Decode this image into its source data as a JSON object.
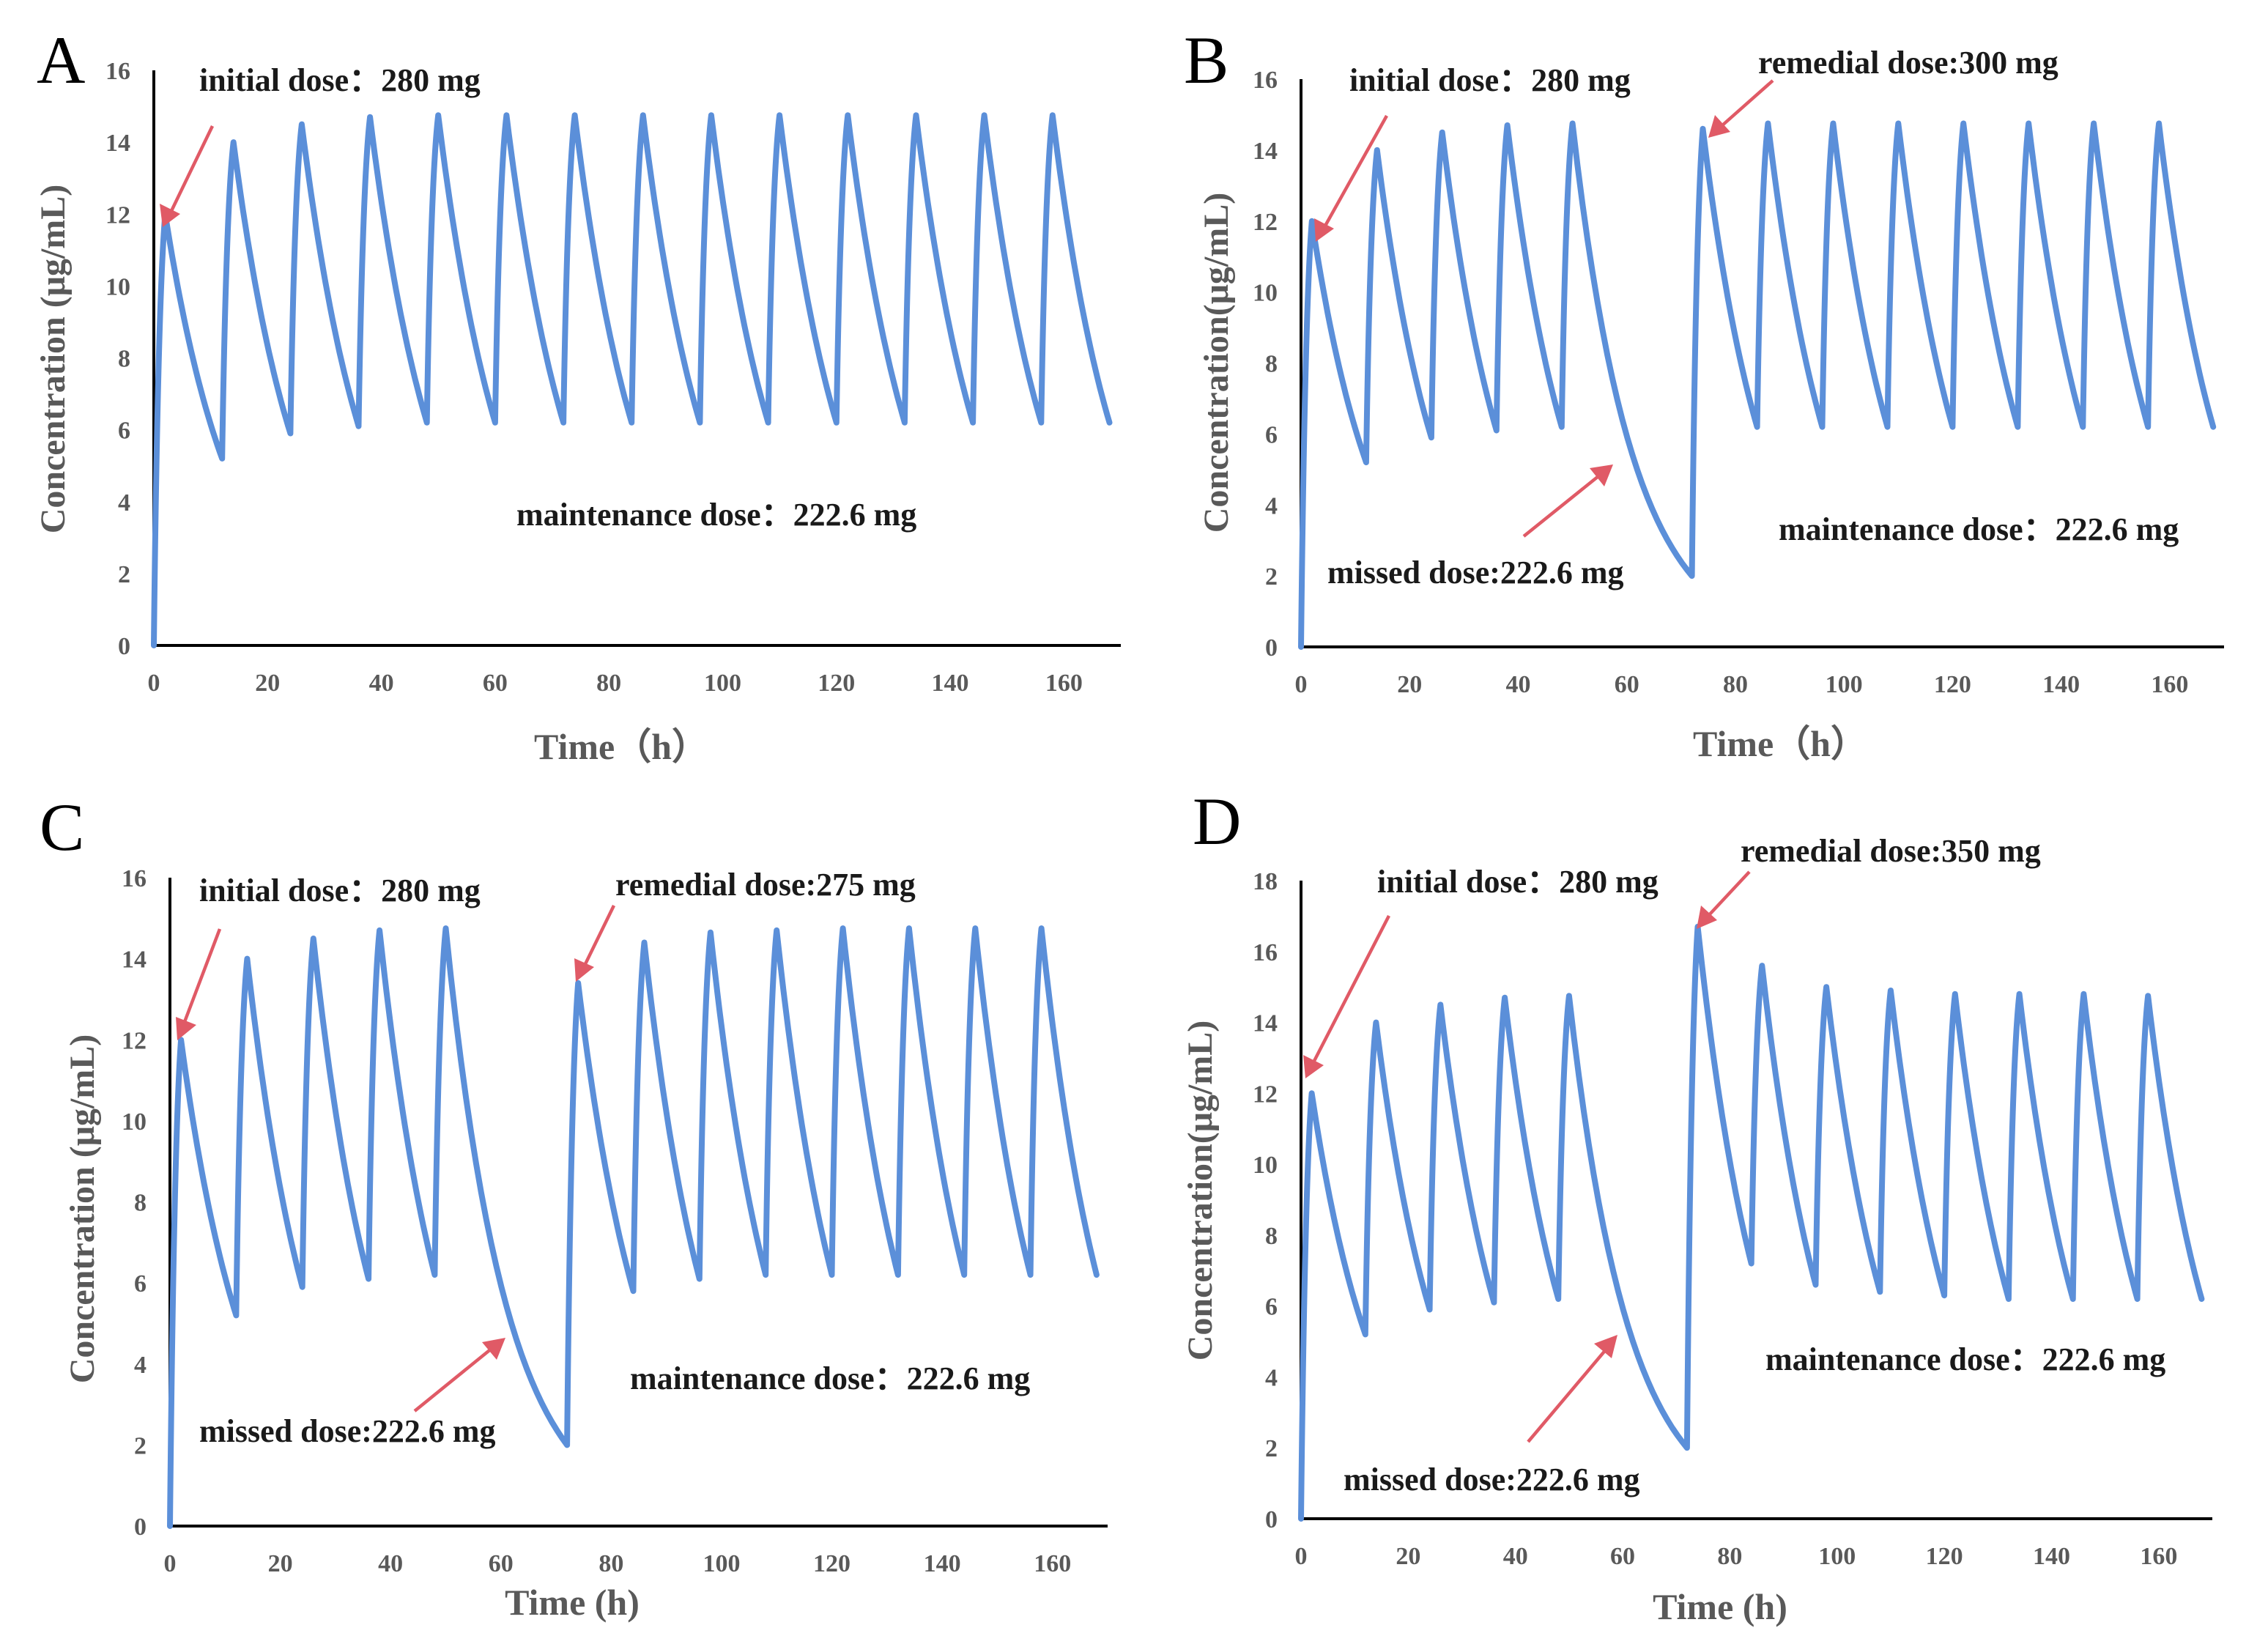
{
  "figure": {
    "background": "#ffffff",
    "curve_color": "#5b8fd9",
    "arrow_color": "#e05a66"
  },
  "chart_data": [
    {
      "panel": "A",
      "type": "line",
      "xlabel": "Time（h）",
      "ylabel": "Concentration (μg/mL)",
      "xlim": [
        0,
        170
      ],
      "ylim": [
        0,
        16
      ],
      "xticks": [
        "0",
        "20",
        "40",
        "60",
        "80",
        "100",
        "120",
        "140",
        "160"
      ],
      "yticks": [
        "0",
        "2",
        "4",
        "6",
        "8",
        "10",
        "12",
        "14",
        "16"
      ],
      "series": [
        {
          "name": "concentration",
          "x": [
            0,
            2,
            12,
            14,
            24,
            26,
            36,
            38,
            48,
            50,
            60,
            62,
            72,
            74,
            84,
            86,
            96,
            98,
            108,
            110,
            120,
            122,
            132,
            134,
            144,
            146,
            156,
            158,
            168
          ],
          "y": [
            0,
            12.0,
            5.2,
            14.0,
            5.9,
            14.5,
            6.1,
            14.7,
            6.2,
            14.75,
            6.2,
            14.75,
            6.2,
            14.75,
            6.2,
            14.75,
            6.2,
            14.75,
            6.2,
            14.75,
            6.2,
            14.75,
            6.2,
            14.75,
            6.2,
            14.75,
            6.2,
            14.75,
            6.2
          ]
        }
      ],
      "annotations": [
        {
          "text": "initial dose：280 mg",
          "x": 2,
          "y": 12.0
        },
        {
          "text": "maintenance dose：222.6 mg"
        }
      ]
    },
    {
      "panel": "B",
      "type": "line",
      "xlabel": "Time（h）",
      "ylabel": "Concentration(μg/mL)",
      "xlim": [
        0,
        170
      ],
      "ylim": [
        0,
        16
      ],
      "xticks": [
        "0",
        "20",
        "40",
        "60",
        "80",
        "100",
        "120",
        "140",
        "160"
      ],
      "yticks": [
        "0",
        "2",
        "4",
        "6",
        "8",
        "10",
        "12",
        "14",
        "16"
      ],
      "series": [
        {
          "name": "concentration",
          "x": [
            0,
            2,
            12,
            14,
            24,
            26,
            36,
            38,
            48,
            50,
            72,
            74,
            84,
            86,
            96,
            98,
            108,
            110,
            120,
            122,
            132,
            134,
            144,
            146,
            156,
            158,
            168
          ],
          "y": [
            0,
            12.0,
            5.2,
            14.0,
            5.9,
            14.5,
            6.1,
            14.7,
            6.2,
            14.75,
            2.0,
            14.6,
            6.2,
            14.75,
            6.2,
            14.75,
            6.2,
            14.75,
            6.2,
            14.75,
            6.2,
            14.75,
            6.2,
            14.75,
            6.2,
            14.75,
            6.2
          ]
        }
      ],
      "annotations": [
        {
          "text": "initial dose：280 mg",
          "x": 2,
          "y": 12.0
        },
        {
          "text": "remedial dose:300 mg",
          "x": 74,
          "y": 14.6
        },
        {
          "text": "missed dose:222.6 mg",
          "x": 59,
          "y": 5.0
        },
        {
          "text": "maintenance dose：222.6 mg"
        }
      ]
    },
    {
      "panel": "C",
      "type": "line",
      "xlabel": "Time (h)",
      "ylabel": "Concentration (μg/mL)",
      "xlim": [
        0,
        170
      ],
      "ylim": [
        0,
        16
      ],
      "xticks": [
        "0",
        "20",
        "40",
        "60",
        "80",
        "100",
        "120",
        "140",
        "160"
      ],
      "yticks": [
        "0",
        "2",
        "4",
        "6",
        "8",
        "10",
        "12",
        "14",
        "16"
      ],
      "series": [
        {
          "name": "concentration",
          "x": [
            0,
            2,
            12,
            14,
            24,
            26,
            36,
            38,
            48,
            50,
            72,
            74,
            84,
            86,
            96,
            98,
            108,
            110,
            120,
            122,
            132,
            134,
            144,
            146,
            156,
            158,
            168
          ],
          "y": [
            0,
            12.0,
            5.2,
            14.0,
            5.9,
            14.5,
            6.1,
            14.7,
            6.2,
            14.75,
            2.0,
            13.4,
            5.8,
            14.4,
            6.1,
            14.65,
            6.2,
            14.7,
            6.2,
            14.75,
            6.2,
            14.75,
            6.2,
            14.75,
            6.2,
            14.75,
            6.2
          ]
        }
      ],
      "annotations": [
        {
          "text": "initial dose：280 mg",
          "x": 2,
          "y": 12.0
        },
        {
          "text": "remedial dose:275 mg",
          "x": 74,
          "y": 13.4
        },
        {
          "text": "missed dose:222.6 mg",
          "x": 60,
          "y": 4.6
        },
        {
          "text": "maintenance dose：222.6 mg"
        }
      ]
    },
    {
      "panel": "D",
      "type": "line",
      "xlabel": "Time (h)",
      "ylabel": "Concentration(μg/mL)",
      "xlim": [
        0,
        170
      ],
      "ylim": [
        0,
        18
      ],
      "xticks": [
        "0",
        "20",
        "40",
        "60",
        "80",
        "100",
        "120",
        "140",
        "160"
      ],
      "yticks": [
        "0",
        "2",
        "4",
        "6",
        "8",
        "10",
        "12",
        "14",
        "16",
        "18"
      ],
      "series": [
        {
          "name": "concentration",
          "x": [
            0,
            2,
            12,
            14,
            24,
            26,
            36,
            38,
            48,
            50,
            72,
            74,
            84,
            86,
            96,
            98,
            108,
            110,
            120,
            122,
            132,
            134,
            144,
            146,
            156,
            158,
            168
          ],
          "y": [
            0,
            12.0,
            5.2,
            14.0,
            5.9,
            14.5,
            6.1,
            14.7,
            6.2,
            14.75,
            2.0,
            16.7,
            7.2,
            15.6,
            6.6,
            15.0,
            6.4,
            14.9,
            6.3,
            14.8,
            6.2,
            14.8,
            6.2,
            14.8,
            6.2,
            14.75,
            6.2
          ]
        }
      ],
      "annotations": [
        {
          "text": "initial dose：280 mg",
          "x": 2,
          "y": 12.0
        },
        {
          "text": "remedial dose:350 mg",
          "x": 74,
          "y": 16.7
        },
        {
          "text": "missed dose:222.6 mg",
          "x": 59,
          "y": 4.9
        },
        {
          "text": "maintenance dose：222.6 mg"
        }
      ]
    }
  ]
}
